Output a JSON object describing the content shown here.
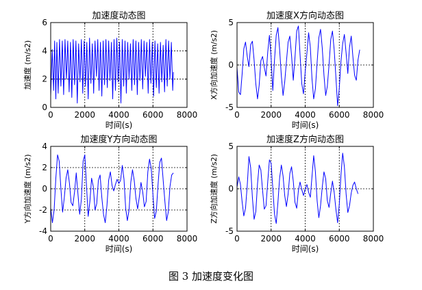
{
  "figure": {
    "caption": "图 3  加速度变化图"
  },
  "chart_data": [
    {
      "type": "line",
      "title": "加速度动态图",
      "xlabel": "时间(s)",
      "ylabel": "加速度 (m/s2)",
      "xlim": [
        0,
        8000
      ],
      "ylim": [
        0,
        6
      ],
      "xticks": [
        0,
        2000,
        4000,
        6000,
        8000
      ],
      "yticks": [
        0,
        2,
        4,
        6
      ],
      "grid": "dotted",
      "series": [
        {
          "color": "#0000ff",
          "x": [
            0,
            90,
            170,
            230,
            300,
            360,
            440,
            520,
            600,
            680,
            760,
            840,
            920,
            1000,
            1080,
            1160,
            1240,
            1320,
            1400,
            1480,
            1560,
            1640,
            1720,
            1800,
            1880,
            1960,
            2040,
            2120,
            2200,
            2280,
            2360,
            2440,
            2520,
            2600,
            2680,
            2760,
            2840,
            2920,
            3000,
            3080,
            3160,
            3240,
            3320,
            3400,
            3480,
            3560,
            3640,
            3720,
            3800,
            3880,
            3960,
            4040,
            4120,
            4200,
            4280,
            4360,
            4440,
            4520,
            4600,
            4680,
            4760,
            4840,
            4920,
            5000,
            5080,
            5160,
            5240,
            5320,
            5400,
            5480,
            5560,
            5640,
            5720,
            5800,
            5880,
            5960,
            6040,
            6120,
            6200,
            6280,
            6360,
            6440,
            6520,
            6600,
            6680,
            6760,
            6840,
            6920,
            7000,
            7080,
            7160,
            7200
          ],
          "y": [
            0.8,
            4.1,
            1.2,
            4.7,
            0.6,
            4.6,
            1.0,
            4.8,
            1.5,
            4.7,
            0.9,
            4.8,
            2.0,
            4.7,
            1.1,
            4.6,
            0.7,
            4.8,
            1.6,
            4.7,
            0.3,
            4.5,
            1.8,
            4.8,
            1.0,
            4.7,
            1.5,
            4.6,
            0.6,
            4.9,
            1.7,
            4.5,
            1.0,
            4.7,
            2.2,
            4.8,
            1.2,
            4.6,
            0.8,
            4.7,
            1.6,
            4.8,
            1.4,
            4.7,
            1.9,
            4.6,
            0.6,
            4.8,
            1.2,
            4.9,
            1.8,
            4.6,
            0.3,
            4.8,
            1.5,
            4.7,
            1.0,
            4.6,
            2.0,
            4.5,
            1.2,
            4.8,
            1.6,
            4.7,
            0.9,
            4.6,
            1.9,
            4.8,
            1.3,
            4.7,
            2.2,
            4.6,
            1.0,
            4.8,
            1.7,
            4.6,
            0.8,
            4.7,
            1.4,
            4.5,
            1.0,
            4.6,
            1.8,
            4.4,
            1.1,
            4.8,
            1.5,
            4.7,
            2.0,
            4.6,
            1.2,
            2.5
          ]
        }
      ]
    },
    {
      "type": "line",
      "title": "加速度X方向动态图",
      "xlabel": "时间(s)",
      "ylabel": "X方向加速度 (m/s2)",
      "xlim": [
        0,
        8000
      ],
      "ylim": [
        -5,
        5
      ],
      "xticks": [
        0,
        2000,
        4000,
        6000,
        8000
      ],
      "yticks": [
        -5,
        0,
        5
      ],
      "grid": "dotted",
      "series": [
        {
          "color": "#0000ff",
          "x": [
            0,
            100,
            200,
            300,
            400,
            500,
            600,
            700,
            800,
            900,
            1000,
            1100,
            1200,
            1300,
            1400,
            1500,
            1600,
            1700,
            1800,
            1900,
            2000,
            2100,
            2200,
            2300,
            2400,
            2500,
            2600,
            2700,
            2800,
            2900,
            3000,
            3100,
            3200,
            3300,
            3400,
            3500,
            3600,
            3700,
            3800,
            3900,
            4000,
            4100,
            4200,
            4300,
            4400,
            4500,
            4600,
            4700,
            4800,
            4900,
            5000,
            5100,
            5200,
            5300,
            5400,
            5500,
            5600,
            5700,
            5800,
            5900,
            6000,
            6100,
            6200,
            6300,
            6400,
            6500,
            6600,
            6700,
            6800,
            6900,
            7000,
            7100,
            7200
          ],
          "y": [
            -0.3,
            -3.2,
            -3.5,
            -1.0,
            1.9,
            2.7,
            1.0,
            -0.2,
            2.4,
            2.8,
            0.6,
            -2.2,
            -4.0,
            -2.4,
            0.5,
            1.0,
            -0.3,
            -1.3,
            1.5,
            3.5,
            0.8,
            -3.0,
            0.6,
            3.5,
            4.4,
            1.8,
            -1.3,
            -3.6,
            -2.0,
            0.4,
            2.7,
            3.4,
            1.1,
            -1.8,
            0.9,
            4.0,
            4.6,
            1.2,
            -2.2,
            -3.4,
            -0.8,
            1.4,
            3.8,
            2.1,
            -1.6,
            -4.0,
            -2.8,
            0.3,
            3.2,
            4.2,
            2.0,
            -1.2,
            -3.6,
            -2.5,
            0.0,
            3.0,
            4.0,
            1.8,
            -1.4,
            -4.8,
            -2.7,
            0.4,
            2.5,
            3.6,
            1.4,
            -1.0,
            2.1,
            3.4,
            1.0,
            -1.2,
            -1.8,
            0.6,
            1.8
          ]
        }
      ]
    },
    {
      "type": "line",
      "title": "加速度Y方向动态图",
      "xlabel": "时间(s)",
      "ylabel": "Y方向加速度 (m/s2)",
      "xlim": [
        0,
        8000
      ],
      "ylim": [
        -4,
        4
      ],
      "xticks": [
        0,
        2000,
        4000,
        6000,
        8000
      ],
      "yticks": [
        -4,
        -2,
        0,
        2,
        4
      ],
      "grid": "dotted",
      "series": [
        {
          "color": "#0000ff",
          "x": [
            0,
            100,
            200,
            300,
            400,
            500,
            600,
            700,
            800,
            900,
            1000,
            1100,
            1200,
            1300,
            1400,
            1500,
            1600,
            1700,
            1800,
            1900,
            2000,
            2100,
            2200,
            2300,
            2400,
            2500,
            2600,
            2700,
            2800,
            2900,
            3000,
            3100,
            3200,
            3300,
            3400,
            3500,
            3600,
            3700,
            3800,
            3900,
            4000,
            4100,
            4200,
            4300,
            4400,
            4500,
            4600,
            4700,
            4800,
            4900,
            5000,
            5100,
            5200,
            5300,
            5400,
            5500,
            5600,
            5700,
            5800,
            5900,
            6000,
            6100,
            6200,
            6300,
            6400,
            6500,
            6600,
            6700,
            6800,
            6900,
            7000,
            7100,
            7200
          ],
          "y": [
            -1.8,
            -3.2,
            -2.0,
            1.0,
            3.2,
            2.6,
            0.0,
            -2.2,
            -0.8,
            1.0,
            1.8,
            0.5,
            -1.3,
            -1.6,
            -0.3,
            1.5,
            -0.5,
            -2.4,
            -1.0,
            2.6,
            3.2,
            0.4,
            -2.6,
            -1.2,
            1.0,
            0.2,
            -2.0,
            -1.4,
            0.8,
            1.3,
            -0.8,
            -2.4,
            -3.2,
            -1.6,
            0.8,
            1.6,
            0.3,
            -0.2,
            0.4,
            0.9,
            0.5,
            0.8,
            2.2,
            0.9,
            -1.8,
            -3.0,
            -2.0,
            0.6,
            1.8,
            0.8,
            -0.9,
            -1.9,
            -0.8,
            0.6,
            -0.3,
            -1.7,
            -1.2,
            1.6,
            2.8,
            1.9,
            -0.6,
            -2.8,
            -2.1,
            0.4,
            2.5,
            2.9,
            0.8,
            -1.2,
            -3.0,
            -2.2,
            0.2,
            1.3,
            1.5
          ]
        }
      ]
    },
    {
      "type": "line",
      "title": "加速度Z方向动态图",
      "xlabel": "时间(s)",
      "ylabel": "Z方向加速度 (m/s2)",
      "xlim": [
        0,
        8000
      ],
      "ylim": [
        -5,
        5
      ],
      "xticks": [
        0,
        2000,
        4000,
        6000,
        8000
      ],
      "yticks": [
        -5,
        0,
        5
      ],
      "grid": "dotted",
      "series": [
        {
          "color": "#0000ff",
          "x": [
            0,
            100,
            200,
            300,
            400,
            500,
            600,
            700,
            800,
            900,
            1000,
            1100,
            1200,
            1300,
            1400,
            1500,
            1600,
            1700,
            1800,
            1900,
            2000,
            2100,
            2200,
            2300,
            2400,
            2500,
            2600,
            2700,
            2800,
            2900,
            3000,
            3100,
            3200,
            3300,
            3400,
            3500,
            3600,
            3700,
            3800,
            3900,
            4000,
            4100,
            4200,
            4300,
            4400,
            4500,
            4600,
            4700,
            4800,
            4900,
            5000,
            5100,
            5200,
            5300,
            5400,
            5500,
            5600,
            5700,
            5800,
            5900,
            6000,
            6100,
            6200,
            6300,
            6400,
            6500,
            6600,
            6700,
            6800,
            6900,
            7000,
            7100
          ],
          "y": [
            0.2,
            1.4,
            0.5,
            -1.6,
            -3.2,
            -2.3,
            0.4,
            3.8,
            2.5,
            -1.0,
            -3.6,
            -2.7,
            0.6,
            2.8,
            2.2,
            -0.2,
            -2.4,
            -2.0,
            0.8,
            3.4,
            3.0,
            0.1,
            -3.0,
            -4.1,
            -1.6,
            1.3,
            2.8,
            1.5,
            -0.8,
            -2.1,
            -0.6,
            1.8,
            2.6,
            0.9,
            -1.6,
            -2.3,
            -0.2,
            0.8,
            -0.1,
            -0.8,
            0.0,
            0.5,
            -0.4,
            -1.0,
            1.4,
            3.9,
            2.0,
            -1.4,
            -3.4,
            -2.0,
            0.2,
            2.0,
            1.2,
            -1.4,
            -2.2,
            -0.5,
            0.9,
            -0.4,
            -2.4,
            -4.0,
            -1.8,
            1.6,
            4.2,
            2.6,
            -0.6,
            -2.8,
            -2.0,
            -0.5,
            0.4,
            0.8,
            0.0,
            -0.6
          ]
        }
      ]
    }
  ]
}
